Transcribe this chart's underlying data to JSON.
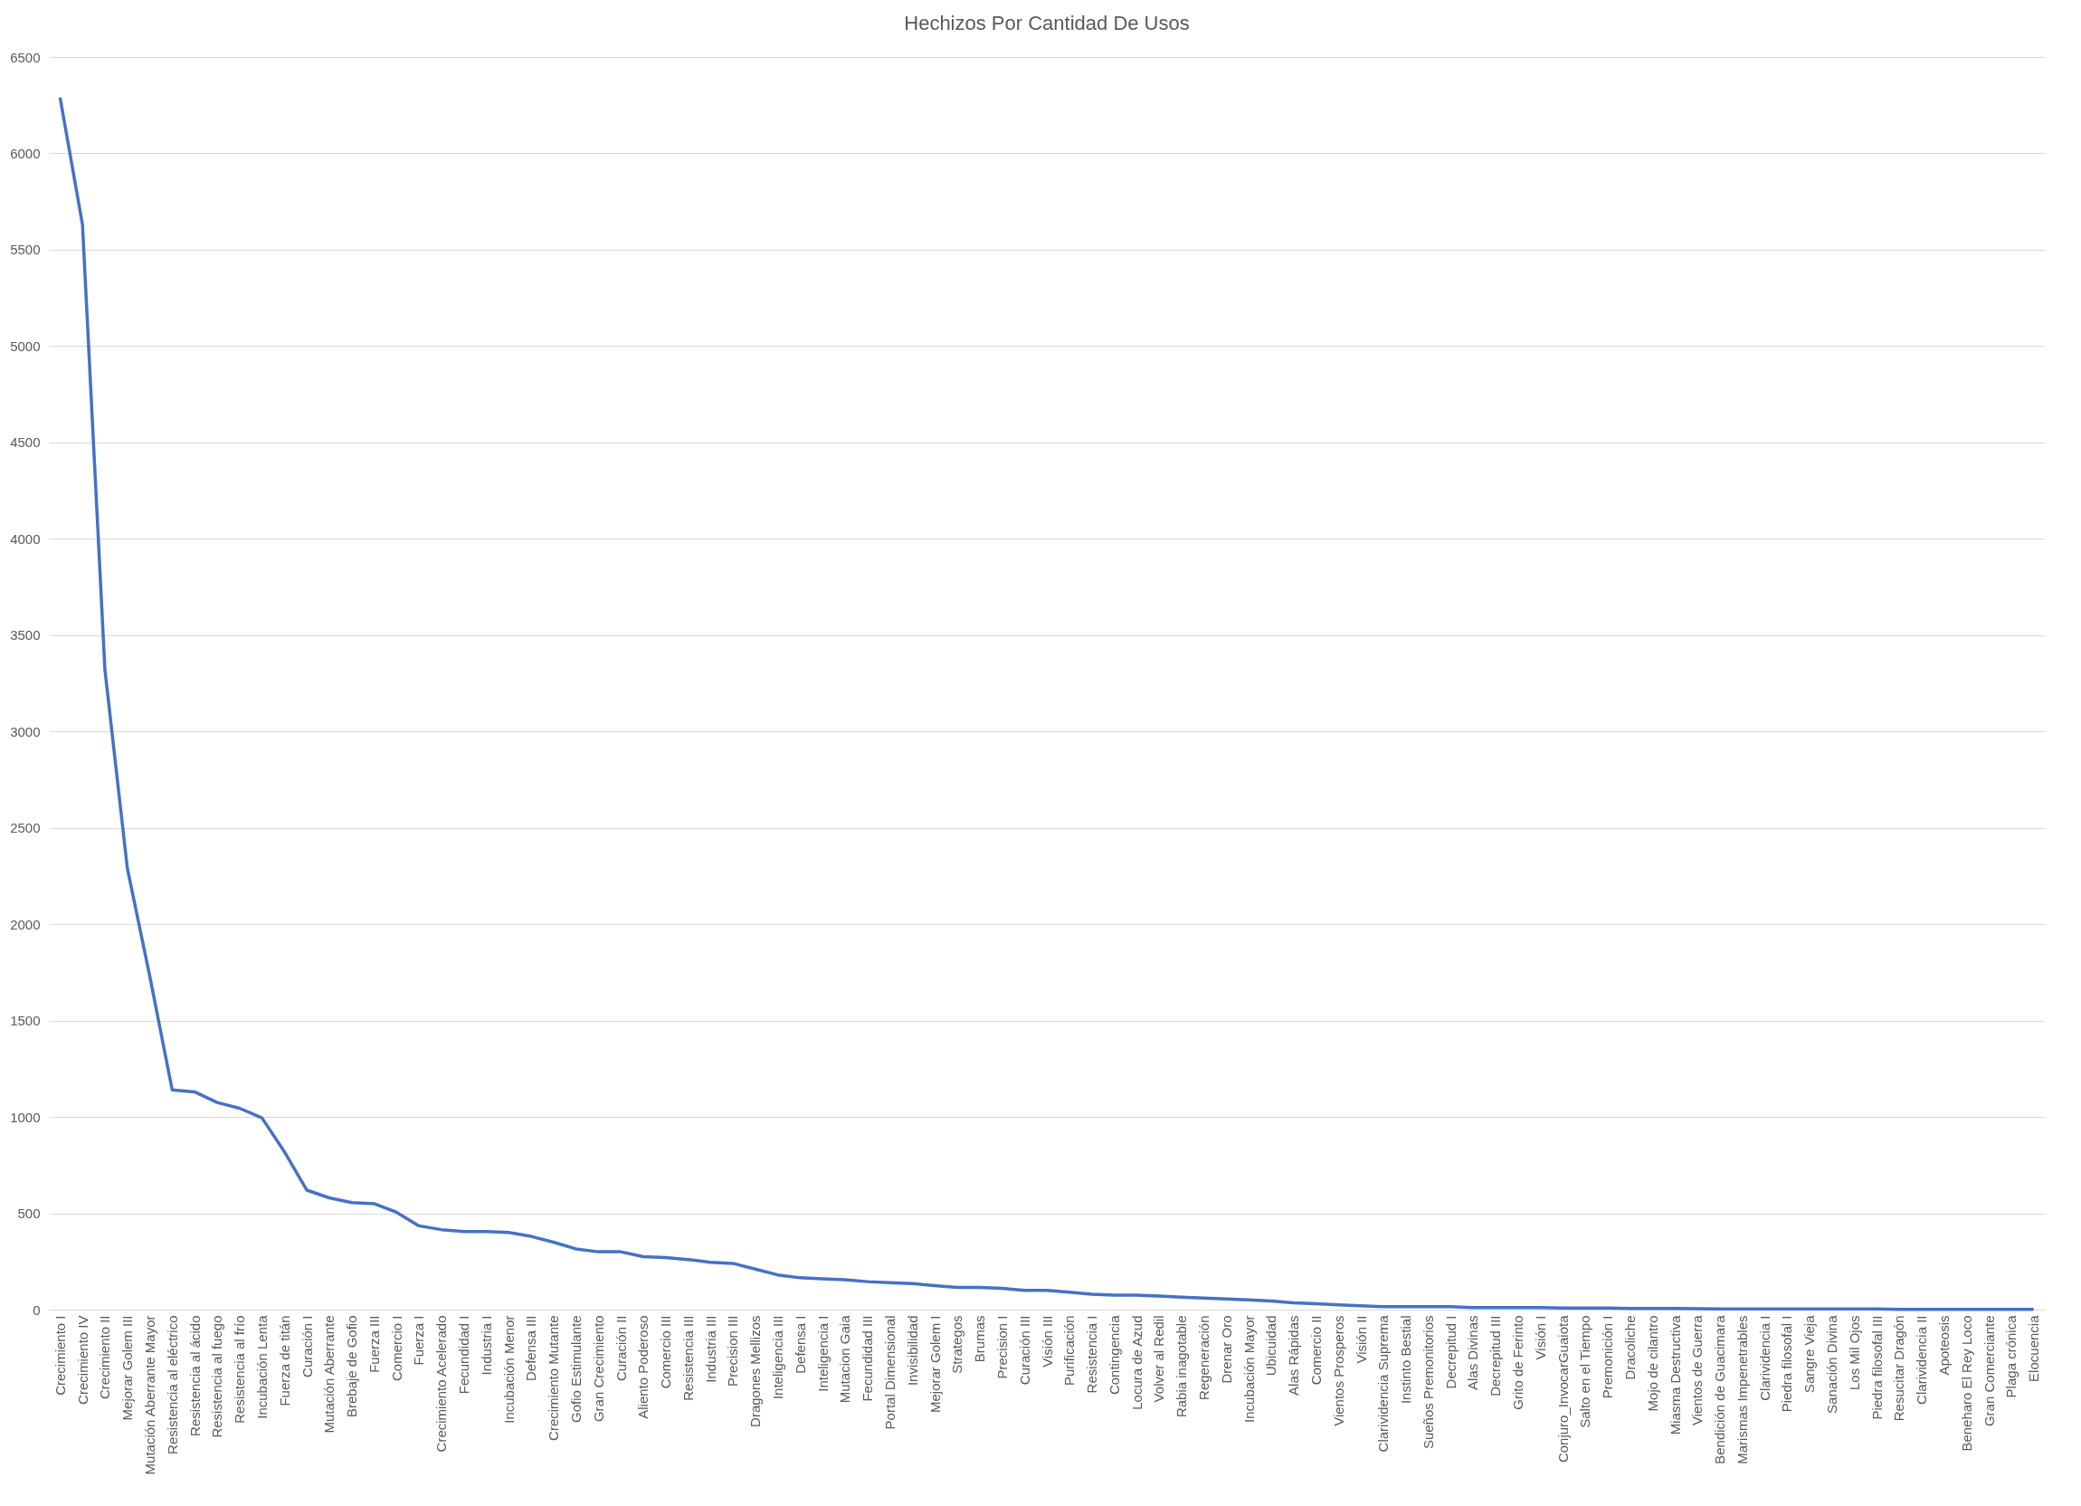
{
  "chart_data": {
    "type": "line",
    "title": "Hechizos Por Cantidad De Usos",
    "categories": [
      "Crecimiento I",
      "Crecimiento IV",
      "Crecimiento II",
      "Mejorar Golem III",
      "Mutación Aberrante Mayor",
      "Resistencia al eléctrico",
      "Resistencia al ácido",
      "Resistencia al fuego",
      "Resistencia al frío",
      "Incubación Lenta",
      "Fuerza de titán",
      "Curación I",
      "Mutación Aberrante",
      "Brebaje de Gofio",
      "Fuerza III",
      "Comercio I",
      "Fuerza I",
      "Crecimiento Acelerado",
      "Fecundidad I",
      "Industria I",
      "Incubación Menor",
      "Defensa III",
      "Crecimiento Mutante",
      "Gofio Estimulante",
      "Gran Crecimiento",
      "Curación II",
      "Aliento Poderoso",
      "Comercio III",
      "Resistencia III",
      "Industria III",
      "Precision III",
      "Dragones Mellizos",
      "Inteligencia III",
      "Defensa I",
      "Inteligencia I",
      "Mutacion Gaia",
      "Fecundidad III",
      "Portal Dimensional",
      "Invisibilidad",
      "Mejorar Golem I",
      "Strategos",
      "Brumas",
      "Precision I",
      "Curación III",
      "Visión III",
      "Purificación",
      "Resistencia I",
      "Contingencia",
      "Locura de Azud",
      "Volver al Redil",
      "Rabia inagotable",
      "Regeneración",
      "Drenar Oro",
      "Incubación Mayor",
      "Ubicuidad",
      "Alas Rápidas",
      "Comercio II",
      "Vientos Prosperos",
      "Visión II",
      "Clarividencia Suprema",
      "Instinto Bestial",
      "Sueños Premonitorios",
      "Decrepitud I",
      "Alas Divinas",
      "Decrepitud III",
      "Grito de Ferinto",
      "Visión I",
      "Conjuro_InvocarGuaiota",
      "Salto en el Tiempo",
      "Premonición I",
      "Dracoliche",
      "Mojo de cilantro",
      "Miasma Destructiva",
      "Vientos de Guerra",
      "Bendición de Guacimara",
      "Marismas Impenetrables",
      "Clarividencia I",
      "Piedra filosofal I",
      "Sangre Vieja",
      "Sanación Divina",
      "Los Mil Ojos",
      "Piedra filosofal III",
      "Resucitar Dragón",
      "Clarividencia II",
      "Apoteosis",
      "Beneharo El Rey Loco",
      "Gran Comerciante",
      "Plaga crónica",
      "Elocuencia"
    ],
    "series": [
      {
        "color": "#4472c4",
        "values": [
          6290,
          5630,
          3320,
          2290,
          1730,
          1140,
          1130,
          1075,
          1045,
          995,
          820,
          620,
          580,
          555,
          550,
          505,
          435,
          415,
          405,
          405,
          400,
          380,
          350,
          315,
          300,
          300,
          275,
          270,
          260,
          245,
          240,
          210,
          180,
          165,
          160,
          155,
          145,
          140,
          135,
          125,
          115,
          115,
          110,
          100,
          100,
          90,
          80,
          75,
          75,
          70,
          65,
          60,
          55,
          50,
          45,
          35,
          30,
          25,
          20,
          15,
          15,
          15,
          15,
          10,
          10,
          10,
          10,
          8,
          8,
          8,
          6,
          6,
          6,
          5,
          3,
          3,
          3,
          3,
          3,
          3,
          3,
          3,
          1,
          1,
          1,
          1,
          1,
          1,
          1
        ]
      }
    ],
    "ylim": [
      0,
      6500
    ],
    "yticks": [
      0,
      500,
      1000,
      1500,
      2000,
      2500,
      3000,
      3500,
      4000,
      4500,
      5000,
      5500,
      6000,
      6500
    ],
    "grid": "y",
    "line_style": "solid",
    "marker": "none"
  }
}
